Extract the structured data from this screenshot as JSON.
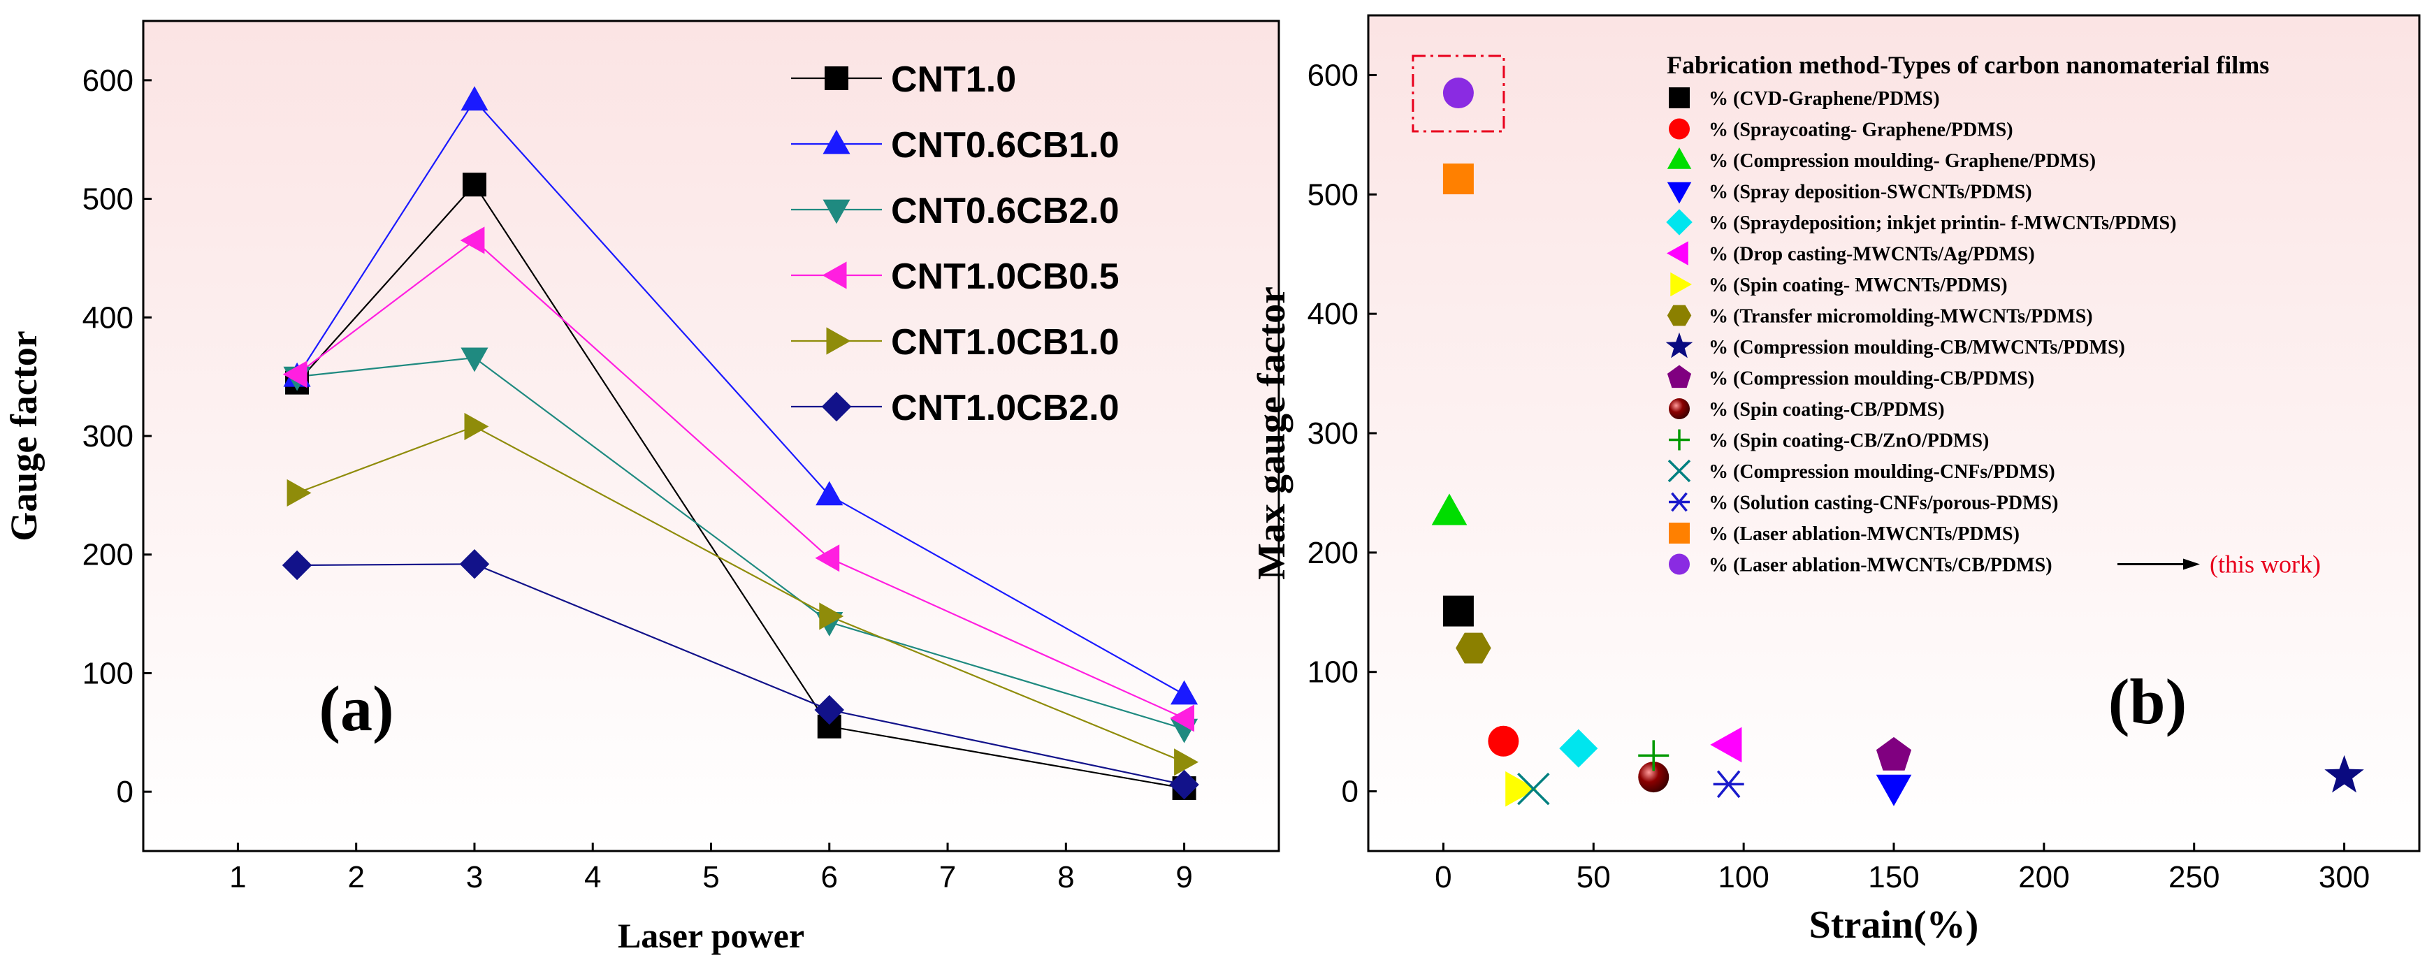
{
  "chart_data": [
    {
      "type": "line",
      "panel_label": "(a)",
      "xlabel": "Laser power",
      "ylabel": "Gauge factor",
      "xlim": [
        0.2,
        9.8
      ],
      "ylim": [
        -50,
        650
      ],
      "xticks": [
        "1",
        "2",
        "3",
        "4",
        "5",
        "6",
        "7",
        "8",
        "9"
      ],
      "yticks": [
        "0",
        "100",
        "200",
        "300",
        "400",
        "500",
        "600"
      ],
      "x": [
        1.5,
        3,
        6,
        9
      ],
      "legend": "top-right",
      "series": [
        {
          "name": "CNT1.0",
          "values": [
            345,
            512,
            55,
            3
          ],
          "color": "#000000",
          "marker": "square"
        },
        {
          "name": "CNT0.6CB1.0",
          "values": [
            350,
            583,
            250,
            82
          ],
          "color": "#1a1aff",
          "marker": "triangle-up"
        },
        {
          "name": "CNT0.6CB2.0",
          "values": [
            350,
            366,
            143,
            53
          ],
          "color": "#1f8a80",
          "marker": "triangle-down"
        },
        {
          "name": "CNT1.0CB0.5",
          "values": [
            352,
            465,
            197,
            62
          ],
          "color": "#ff1fe0",
          "marker": "triangle-left"
        },
        {
          "name": "CNT1.0CB1.0",
          "values": [
            252,
            308,
            148,
            25
          ],
          "color": "#8f8c0a",
          "marker": "triangle-right"
        },
        {
          "name": "CNT1.0CB2.0",
          "values": [
            191,
            192,
            69,
            6
          ],
          "color": "#12128a",
          "marker": "diamond"
        }
      ]
    },
    {
      "type": "scatter",
      "panel_label": "(b)",
      "xlabel": "Strain(%)",
      "ylabel": "Max gauge factor",
      "xlim": [
        -25,
        325
      ],
      "ylim": [
        -50,
        650
      ],
      "xticks": [
        "0",
        "50",
        "100",
        "150",
        "200",
        "250",
        "300"
      ],
      "yticks": [
        "0",
        "100",
        "200",
        "300",
        "400",
        "500",
        "600"
      ],
      "legend_title": "Fabrication method-Types of carbon nanomaterial films",
      "legend": "top-right",
      "highlight_note": "(this work)",
      "series": [
        {
          "name": "% (CVD-Graphene/PDMS)",
          "x": 5,
          "y": 151,
          "color": "#000000",
          "marker": "square"
        },
        {
          "name": "% (Spraycoating- Graphene/PDMS)",
          "x": 20,
          "y": 42,
          "color": "#ff0000",
          "marker": "circle"
        },
        {
          "name": "% (Compression moulding- Graphene/PDMS)",
          "x": 2,
          "y": 234,
          "color": "#00dd00",
          "marker": "triangle-up"
        },
        {
          "name": "% (Spray deposition-SWCNTs/PDMS)",
          "x": 150,
          "y": 3,
          "color": "#0000ff",
          "marker": "triangle-down"
        },
        {
          "name": "% (Spraydeposition; inkjet printin- f-MWCNTs/PDMS)",
          "x": 45,
          "y": 36,
          "color": "#00e5ee",
          "marker": "diamond"
        },
        {
          "name": "% (Drop casting-MWCNTs/Ag/PDMS)",
          "x": 95,
          "y": 39,
          "color": "#ff00ff",
          "marker": "triangle-left"
        },
        {
          "name": "% (Spin coating- MWCNTs/PDMS)",
          "x": 25,
          "y": 2,
          "color": "#ffff00",
          "marker": "triangle-right"
        },
        {
          "name": "% (Transfer micromolding-MWCNTs/PDMS)",
          "x": 10,
          "y": 120,
          "color": "#8b8000",
          "marker": "hexagon"
        },
        {
          "name": "% (Compression moulding-CB/MWCNTs/PDMS)",
          "x": 300,
          "y": 13,
          "color": "#0a0a80",
          "marker": "star"
        },
        {
          "name": "% (Compression moulding-CB/PDMS)",
          "x": 150,
          "y": 30,
          "color": "#800080",
          "marker": "pentagon"
        },
        {
          "name": "% (Spin coating-CB/PDMS)",
          "x": 70,
          "y": 12,
          "color": "#8b0000",
          "marker": "sphere"
        },
        {
          "name": "% (Spin coating-CB/ZnO/PDMS)",
          "x": 70,
          "y": 30,
          "color": "#009900",
          "marker": "plus"
        },
        {
          "name": "% (Compression moulding-CNFs/PDMS)",
          "x": 30,
          "y": 2,
          "color": "#008080",
          "marker": "x"
        },
        {
          "name": "% (Solution casting-CNFs/porous-PDMS)",
          "x": 95,
          "y": 6,
          "color": "#1a1acc",
          "marker": "asterisk"
        },
        {
          "name": "% (Laser ablation-MWCNTs/PDMS)",
          "x": 5,
          "y": 513,
          "color": "#ff8000",
          "marker": "square"
        },
        {
          "name": "% (Laser ablation-MWCNTs/CB/PDMS)",
          "x": 5,
          "y": 585,
          "color": "#8a2be2",
          "marker": "circle"
        }
      ]
    }
  ]
}
